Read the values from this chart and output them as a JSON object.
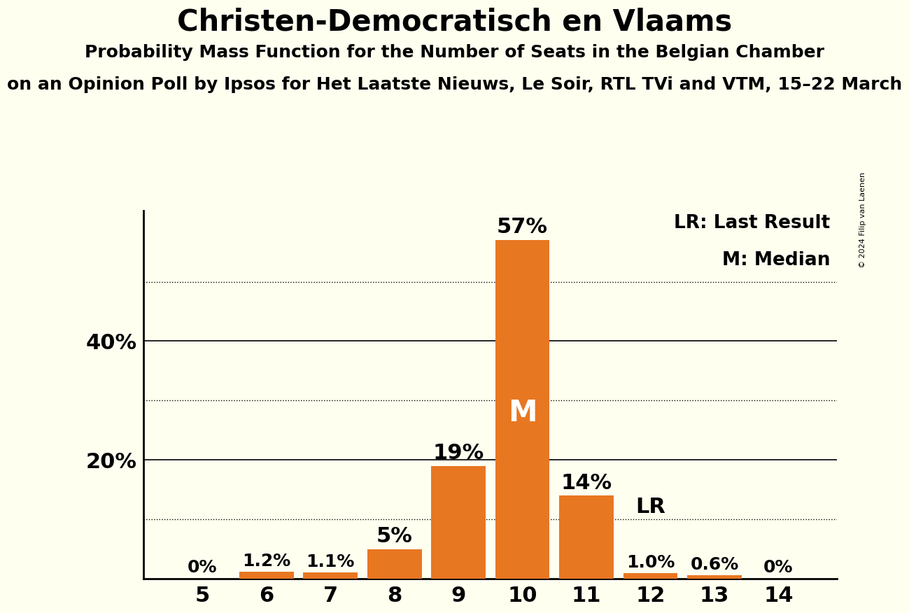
{
  "title": "Christen-Democratisch en Vlaams",
  "subtitle1": "Probability Mass Function for the Number of Seats in the Belgian Chamber",
  "subtitle2": "on an Opinion Poll by Ipsos for Het Laatste Nieuws, Le Soir, RTL TVi and VTM, 15–22 March",
  "copyright": "© 2024 Filip van Laenen",
  "seats": [
    5,
    6,
    7,
    8,
    9,
    10,
    11,
    12,
    13,
    14
  ],
  "probabilities": [
    0.0,
    1.2,
    1.1,
    5.0,
    19.0,
    57.0,
    14.0,
    1.0,
    0.6,
    0.0
  ],
  "bar_color": "#E87722",
  "background_color": "#FFFFF0",
  "median_seat": 10,
  "lr_seat": 12,
  "dotted_lines": [
    10,
    30,
    50
  ],
  "solid_lines": [
    20,
    40
  ],
  "ylim": [
    0,
    62
  ],
  "bar_labels": [
    "0%",
    "1.2%",
    "1.1%",
    "5%",
    "19%",
    "57%",
    "14%",
    "1.0%",
    "0.6%",
    "0%"
  ],
  "legend_lr": "LR: Last Result",
  "legend_m": "M: Median"
}
